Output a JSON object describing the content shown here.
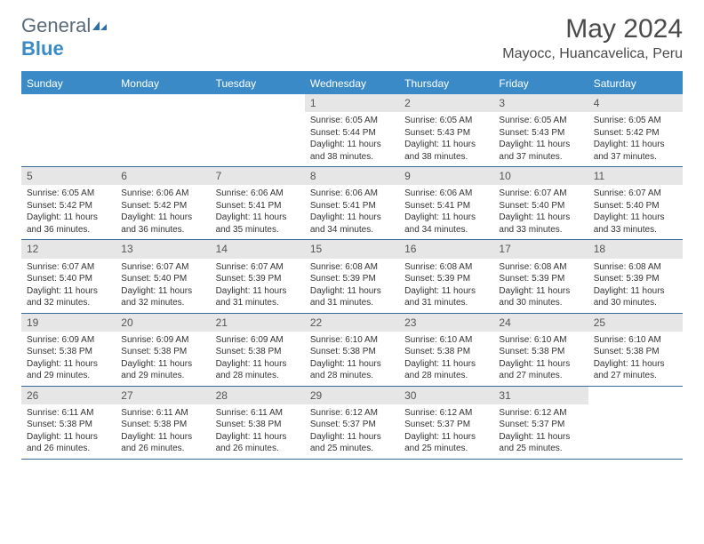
{
  "logo": {
    "text1": "General",
    "text2": "Blue"
  },
  "title": "May 2024",
  "location": "Mayocc, Huancavelica, Peru",
  "colors": {
    "header_bg": "#3a8ac8",
    "header_text": "#ffffff",
    "border": "#3a6a9a",
    "daynum_bg": "#e6e6e6",
    "text": "#333333"
  },
  "day_names": [
    "Sunday",
    "Monday",
    "Tuesday",
    "Wednesday",
    "Thursday",
    "Friday",
    "Saturday"
  ],
  "weeks": [
    [
      {
        "empty": true
      },
      {
        "empty": true
      },
      {
        "empty": true
      },
      {
        "n": "1",
        "sr": "Sunrise: 6:05 AM",
        "ss": "Sunset: 5:44 PM",
        "dl1": "Daylight: 11 hours",
        "dl2": "and 38 minutes."
      },
      {
        "n": "2",
        "sr": "Sunrise: 6:05 AM",
        "ss": "Sunset: 5:43 PM",
        "dl1": "Daylight: 11 hours",
        "dl2": "and 38 minutes."
      },
      {
        "n": "3",
        "sr": "Sunrise: 6:05 AM",
        "ss": "Sunset: 5:43 PM",
        "dl1": "Daylight: 11 hours",
        "dl2": "and 37 minutes."
      },
      {
        "n": "4",
        "sr": "Sunrise: 6:05 AM",
        "ss": "Sunset: 5:42 PM",
        "dl1": "Daylight: 11 hours",
        "dl2": "and 37 minutes."
      }
    ],
    [
      {
        "n": "5",
        "sr": "Sunrise: 6:05 AM",
        "ss": "Sunset: 5:42 PM",
        "dl1": "Daylight: 11 hours",
        "dl2": "and 36 minutes."
      },
      {
        "n": "6",
        "sr": "Sunrise: 6:06 AM",
        "ss": "Sunset: 5:42 PM",
        "dl1": "Daylight: 11 hours",
        "dl2": "and 36 minutes."
      },
      {
        "n": "7",
        "sr": "Sunrise: 6:06 AM",
        "ss": "Sunset: 5:41 PM",
        "dl1": "Daylight: 11 hours",
        "dl2": "and 35 minutes."
      },
      {
        "n": "8",
        "sr": "Sunrise: 6:06 AM",
        "ss": "Sunset: 5:41 PM",
        "dl1": "Daylight: 11 hours",
        "dl2": "and 34 minutes."
      },
      {
        "n": "9",
        "sr": "Sunrise: 6:06 AM",
        "ss": "Sunset: 5:41 PM",
        "dl1": "Daylight: 11 hours",
        "dl2": "and 34 minutes."
      },
      {
        "n": "10",
        "sr": "Sunrise: 6:07 AM",
        "ss": "Sunset: 5:40 PM",
        "dl1": "Daylight: 11 hours",
        "dl2": "and 33 minutes."
      },
      {
        "n": "11",
        "sr": "Sunrise: 6:07 AM",
        "ss": "Sunset: 5:40 PM",
        "dl1": "Daylight: 11 hours",
        "dl2": "and 33 minutes."
      }
    ],
    [
      {
        "n": "12",
        "sr": "Sunrise: 6:07 AM",
        "ss": "Sunset: 5:40 PM",
        "dl1": "Daylight: 11 hours",
        "dl2": "and 32 minutes."
      },
      {
        "n": "13",
        "sr": "Sunrise: 6:07 AM",
        "ss": "Sunset: 5:40 PM",
        "dl1": "Daylight: 11 hours",
        "dl2": "and 32 minutes."
      },
      {
        "n": "14",
        "sr": "Sunrise: 6:07 AM",
        "ss": "Sunset: 5:39 PM",
        "dl1": "Daylight: 11 hours",
        "dl2": "and 31 minutes."
      },
      {
        "n": "15",
        "sr": "Sunrise: 6:08 AM",
        "ss": "Sunset: 5:39 PM",
        "dl1": "Daylight: 11 hours",
        "dl2": "and 31 minutes."
      },
      {
        "n": "16",
        "sr": "Sunrise: 6:08 AM",
        "ss": "Sunset: 5:39 PM",
        "dl1": "Daylight: 11 hours",
        "dl2": "and 31 minutes."
      },
      {
        "n": "17",
        "sr": "Sunrise: 6:08 AM",
        "ss": "Sunset: 5:39 PM",
        "dl1": "Daylight: 11 hours",
        "dl2": "and 30 minutes."
      },
      {
        "n": "18",
        "sr": "Sunrise: 6:08 AM",
        "ss": "Sunset: 5:39 PM",
        "dl1": "Daylight: 11 hours",
        "dl2": "and 30 minutes."
      }
    ],
    [
      {
        "n": "19",
        "sr": "Sunrise: 6:09 AM",
        "ss": "Sunset: 5:38 PM",
        "dl1": "Daylight: 11 hours",
        "dl2": "and 29 minutes."
      },
      {
        "n": "20",
        "sr": "Sunrise: 6:09 AM",
        "ss": "Sunset: 5:38 PM",
        "dl1": "Daylight: 11 hours",
        "dl2": "and 29 minutes."
      },
      {
        "n": "21",
        "sr": "Sunrise: 6:09 AM",
        "ss": "Sunset: 5:38 PM",
        "dl1": "Daylight: 11 hours",
        "dl2": "and 28 minutes."
      },
      {
        "n": "22",
        "sr": "Sunrise: 6:10 AM",
        "ss": "Sunset: 5:38 PM",
        "dl1": "Daylight: 11 hours",
        "dl2": "and 28 minutes."
      },
      {
        "n": "23",
        "sr": "Sunrise: 6:10 AM",
        "ss": "Sunset: 5:38 PM",
        "dl1": "Daylight: 11 hours",
        "dl2": "and 28 minutes."
      },
      {
        "n": "24",
        "sr": "Sunrise: 6:10 AM",
        "ss": "Sunset: 5:38 PM",
        "dl1": "Daylight: 11 hours",
        "dl2": "and 27 minutes."
      },
      {
        "n": "25",
        "sr": "Sunrise: 6:10 AM",
        "ss": "Sunset: 5:38 PM",
        "dl1": "Daylight: 11 hours",
        "dl2": "and 27 minutes."
      }
    ],
    [
      {
        "n": "26",
        "sr": "Sunrise: 6:11 AM",
        "ss": "Sunset: 5:38 PM",
        "dl1": "Daylight: 11 hours",
        "dl2": "and 26 minutes."
      },
      {
        "n": "27",
        "sr": "Sunrise: 6:11 AM",
        "ss": "Sunset: 5:38 PM",
        "dl1": "Daylight: 11 hours",
        "dl2": "and 26 minutes."
      },
      {
        "n": "28",
        "sr": "Sunrise: 6:11 AM",
        "ss": "Sunset: 5:38 PM",
        "dl1": "Daylight: 11 hours",
        "dl2": "and 26 minutes."
      },
      {
        "n": "29",
        "sr": "Sunrise: 6:12 AM",
        "ss": "Sunset: 5:37 PM",
        "dl1": "Daylight: 11 hours",
        "dl2": "and 25 minutes."
      },
      {
        "n": "30",
        "sr": "Sunrise: 6:12 AM",
        "ss": "Sunset: 5:37 PM",
        "dl1": "Daylight: 11 hours",
        "dl2": "and 25 minutes."
      },
      {
        "n": "31",
        "sr": "Sunrise: 6:12 AM",
        "ss": "Sunset: 5:37 PM",
        "dl1": "Daylight: 11 hours",
        "dl2": "and 25 minutes."
      },
      {
        "empty": true
      }
    ]
  ]
}
